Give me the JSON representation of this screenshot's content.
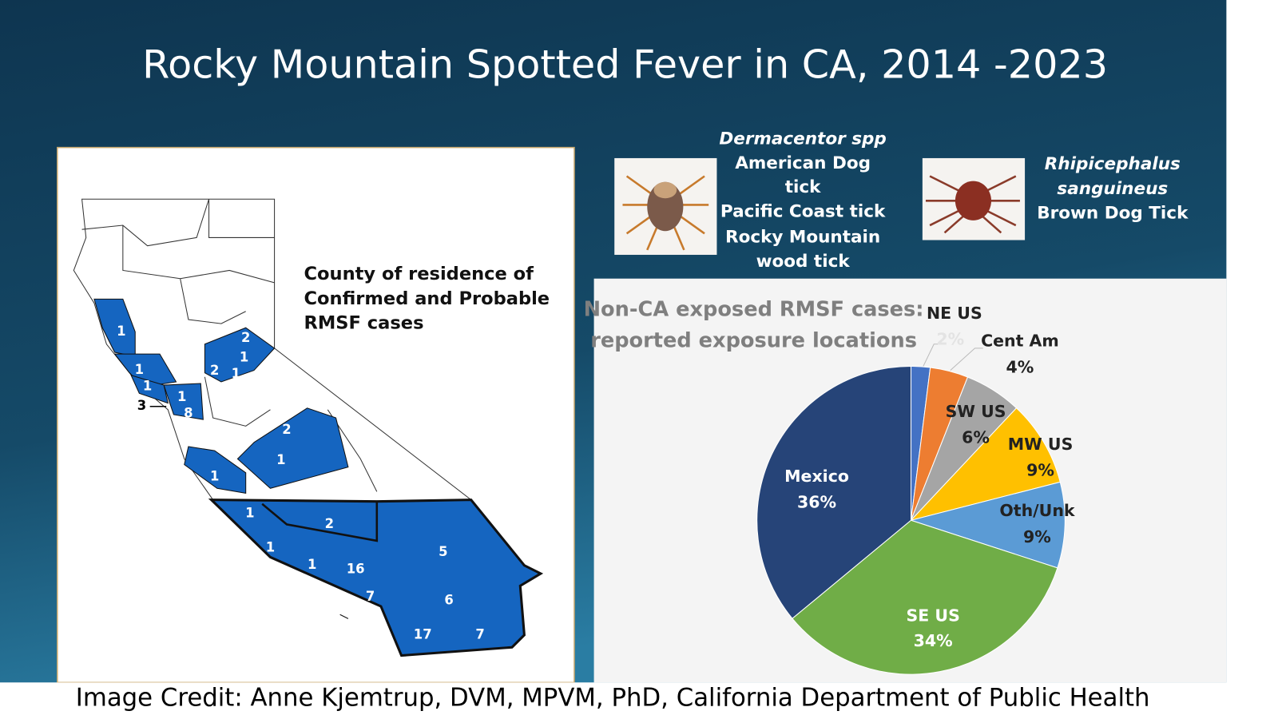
{
  "title": "Rocky Mountain Spotted Fever in CA, 2014 -2023",
  "ticks": [
    {
      "species": "Dermacentor spp",
      "common_names": [
        "American Dog",
        "tick",
        "Pacific Coast tick",
        "Rocky Mountain",
        "wood tick"
      ]
    },
    {
      "species": [
        "Rhipicephalus",
        "sanguineus"
      ],
      "common_names": [
        "Brown Dog Tick"
      ]
    }
  ],
  "map": {
    "caption": [
      "County of residence of",
      "Confirmed and Probable",
      "RMSF cases"
    ],
    "county_counts": [
      1,
      2,
      1,
      1,
      2,
      1,
      1,
      1,
      8,
      3,
      2,
      1,
      1,
      1,
      2,
      5,
      1,
      1,
      16,
      7,
      6,
      17,
      7
    ]
  },
  "chart_data": {
    "type": "pie",
    "title": [
      "Non-CA exposed RMSF cases:",
      "reported exposure locations"
    ],
    "categories": [
      "NE US",
      "Cent Am",
      "SW US",
      "MW US",
      "Oth/Unk",
      "SE US",
      "Mexico"
    ],
    "values": [
      2,
      4,
      6,
      9,
      9,
      34,
      36
    ],
    "value_labels": [
      "2%",
      "4%",
      "6%",
      "9%",
      "9%",
      "34%",
      "36%"
    ],
    "colors": [
      "#4472c4",
      "#ed7d31",
      "#a5a5a5",
      "#ffc000",
      "#5b9bd5",
      "#70ad47",
      "#264478"
    ]
  },
  "credit": "Image Credit: Anne Kjemtrup, DVM, MPVM, PhD, California Department of Public Health"
}
